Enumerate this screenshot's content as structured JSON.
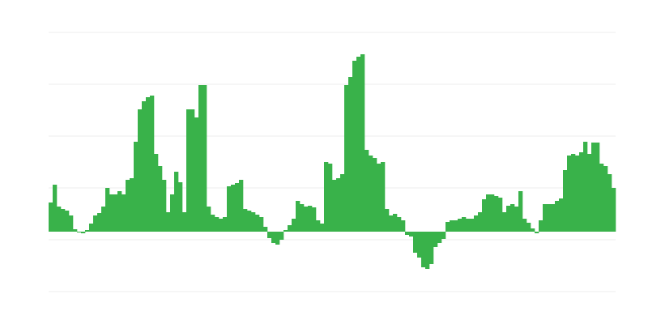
{
  "chart_data": {
    "type": "bar",
    "title": "",
    "xlabel": "",
    "ylabel": "",
    "bar_color": "#39b24a",
    "grid_color": "#ececec",
    "grid": true,
    "ylim": [
      -74,
      246
    ],
    "gridlines": [
      246,
      182,
      118,
      54,
      -10,
      -74
    ],
    "values": [
      36,
      58,
      31,
      28,
      26,
      20,
      3,
      -1,
      -2,
      2,
      10,
      20,
      23,
      31,
      54,
      46,
      46,
      50,
      46,
      64,
      66,
      111,
      151,
      161,
      166,
      168,
      96,
      81,
      64,
      24,
      46,
      74,
      61,
      24,
      151,
      151,
      141,
      181,
      181,
      31,
      21,
      18,
      16,
      18,
      56,
      58,
      60,
      64,
      28,
      26,
      24,
      21,
      18,
      6,
      -8,
      -14,
      -16,
      -10,
      2,
      8,
      16,
      38,
      34,
      31,
      32,
      30,
      14,
      10,
      86,
      84,
      64,
      66,
      71,
      181,
      191,
      211,
      216,
      219,
      101,
      94,
      91,
      84,
      86,
      28,
      20,
      22,
      18,
      14,
      -4,
      -6,
      -26,
      -32,
      -44,
      -46,
      -40,
      -19,
      -14,
      -9,
      12,
      14,
      14,
      16,
      18,
      16,
      16,
      20,
      24,
      40,
      46,
      46,
      44,
      42,
      24,
      32,
      34,
      31,
      50,
      16,
      11,
      4,
      -2,
      14,
      34,
      34,
      34,
      38,
      41,
      76,
      94,
      96,
      94,
      98,
      111,
      96,
      110,
      110,
      84,
      81,
      71,
      54
    ]
  }
}
